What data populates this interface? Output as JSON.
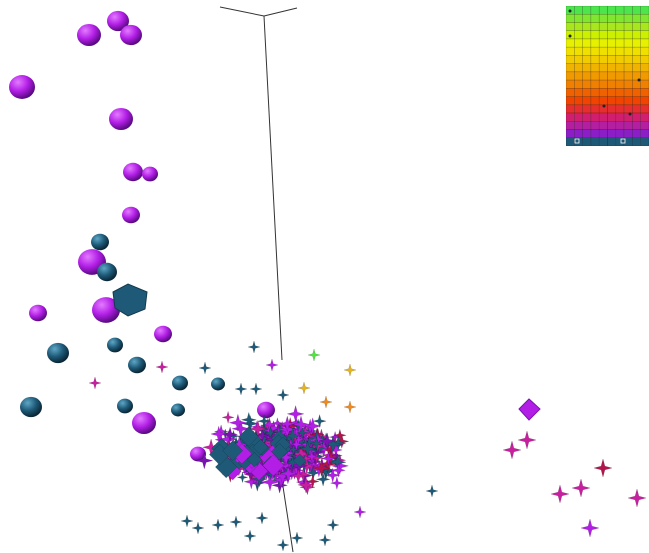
{
  "scene": {
    "background": "#ffffff",
    "axis_color": "#333333"
  },
  "legend": {
    "color_ramp": [
      "#4ce64c",
      "#80e630",
      "#a8e61e",
      "#ccf000",
      "#e6f000",
      "#f0e000",
      "#f0cc00",
      "#f0b400",
      "#f09a00",
      "#f08000",
      "#f06200",
      "#f04400",
      "#e62e2e",
      "#d21e6e",
      "#b41ea0",
      "#8c1ec8",
      "#1e5a78"
    ],
    "marker_color": "#222222"
  },
  "palette": {
    "violet": "#b21ee6",
    "violet_dark": "#7a12b4",
    "teal": "#1e5a78",
    "teal_dark": "#123a4e",
    "magenta": "#c81ea0",
    "crimson": "#b4144e",
    "orange": "#f08a1e",
    "gold": "#e6b41e",
    "green": "#50e640"
  }
}
